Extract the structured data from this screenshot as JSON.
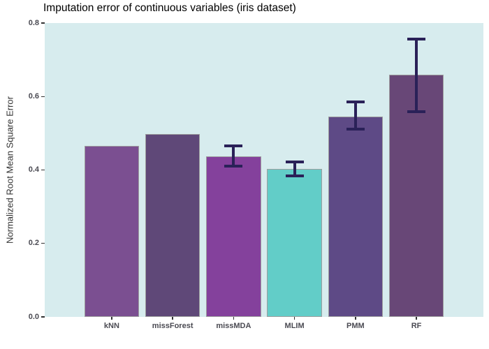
{
  "title": "Imputation error of continuous variables (iris dataset)",
  "chart_data": {
    "type": "bar",
    "title": "Imputation error of continuous variables (iris dataset)",
    "xlabel": "",
    "ylabel": "Normalized Root Mean Square Error",
    "categories": [
      "kNN",
      "missForest",
      "missMDA",
      "MLIM",
      "PMM",
      "RF"
    ],
    "values": [
      0.465,
      0.497,
      0.438,
      0.402,
      0.546,
      0.66
    ],
    "error_bars": [
      null,
      null,
      {
        "min": 0.411,
        "max": 0.466
      },
      {
        "min": 0.383,
        "max": 0.421
      },
      {
        "min": 0.512,
        "max": 0.586
      },
      {
        "min": 0.558,
        "max": 0.757
      }
    ],
    "bar_colors": [
      "#7B4F91",
      "#5F4878",
      "#84419C",
      "#62CDC8",
      "#5E4A86",
      "#684777"
    ],
    "ylim": [
      0,
      0.8
    ],
    "yticks": [
      0.0,
      0.2,
      0.4,
      0.6,
      0.8
    ],
    "ytick_labels": [
      "0.0",
      "0.2",
      "0.4",
      "0.6",
      "0.8"
    ],
    "grid": false,
    "legend": false,
    "colors": {
      "panel_background": "#D7ECEE",
      "bar_border": "#9E9E9E",
      "error_bar": "#2A2158",
      "axis_text": "#4A4A52",
      "title_text": "#000000"
    }
  }
}
